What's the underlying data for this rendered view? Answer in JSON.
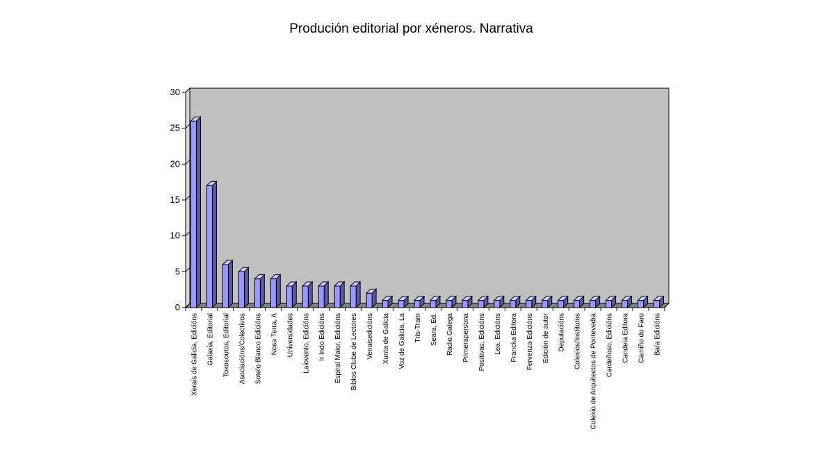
{
  "chart_data": {
    "type": "bar",
    "title": "Produción editorial por xéneros. Narrativa",
    "xlabel": "",
    "ylabel": "",
    "ylim": [
      0,
      30
    ],
    "yticks": [
      0,
      5,
      10,
      15,
      20,
      25,
      30
    ],
    "grid": false,
    "legend": "none",
    "three_d": true,
    "colors": {
      "bar_front": "#9999ff",
      "bar_top": "#ccccff",
      "bar_side": "#5a5aa8",
      "bar_edge": "#000000",
      "plot_wall": "#c0c0c0",
      "plot_floor": "#808080",
      "axis": "#000000"
    },
    "categories": [
      "Xerais de Galicia, Edicións",
      "Galaxia, Editorial",
      "Toxosoutos, Editorial",
      "Asociacións/Colectivos",
      "Sotelo Blanco Edicións",
      "Nosa Terra, A",
      "Universidades",
      "Laiovento, Edicións",
      "Ir Indo Edicións",
      "Espiral Maior, Edicións",
      "Biblos Clube de Lectores",
      "Venaisedicións",
      "Xunta de Galicia",
      "Voz de Galicia, La",
      "Tris-Tram",
      "Seara, Ed.",
      "Radio Galega",
      "Primerapersona",
      "Positivas, Edicións",
      "Lea, Edicións",
      "Francka Editora",
      "Fervenza Edicións",
      "Edición de autor",
      "Deputacións",
      "Colexios/Institutos",
      "Colexio de Arquitectos de Pontevedra",
      "Cardeñoso, Edicións",
      "Candeia Editora",
      "Camiño do Faro",
      "Baía Edicións"
    ],
    "values": [
      26,
      17,
      6,
      5,
      4,
      4,
      3,
      3,
      3,
      3,
      3,
      2,
      1,
      1,
      1,
      1,
      1,
      1,
      1,
      1,
      1,
      1,
      1,
      1,
      1,
      1,
      1,
      1,
      1,
      1
    ]
  }
}
